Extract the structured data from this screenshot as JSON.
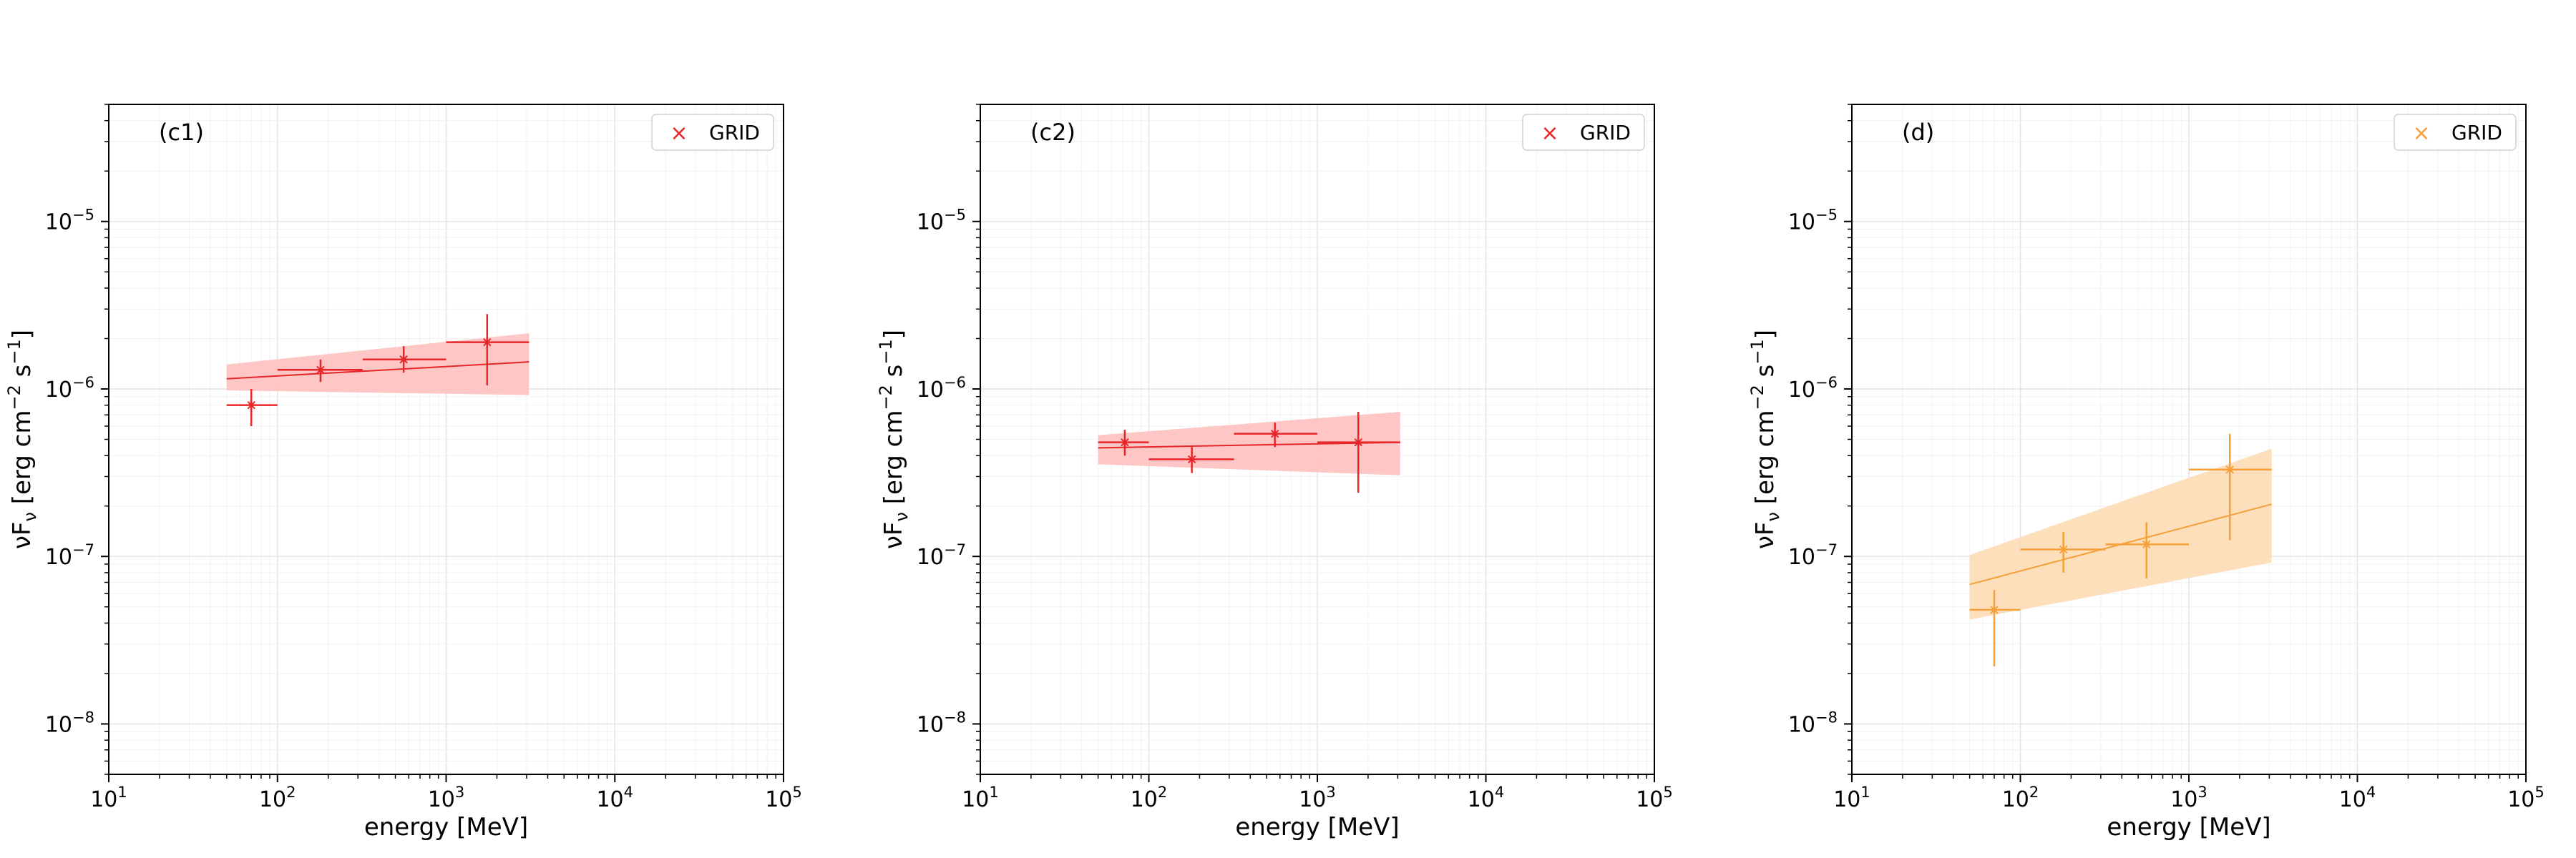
{
  "chart_data": [
    {
      "type": "scatter",
      "panel_label": "(c1)",
      "xlabel": "energy [MeV]",
      "ylabel": "νF_ν [erg cm^-2 s^-1]",
      "ylabel_main": "νF",
      "ylabel_sub": "ν",
      "ylabel_unit": " [erg cm",
      "ylabel_exp1": "−2",
      "ylabel_mid": " s",
      "ylabel_exp2": "−1",
      "ylabel_end": "]",
      "xscale": "log",
      "yscale": "log",
      "xlim": [
        10,
        100000
      ],
      "ylim": [
        5e-09,
        5e-05
      ],
      "x_ticks": [
        {
          "value": 10,
          "base": "10",
          "exp": "1"
        },
        {
          "value": 100,
          "base": "10",
          "exp": "2"
        },
        {
          "value": 1000,
          "base": "10",
          "exp": "3"
        },
        {
          "value": 10000,
          "base": "10",
          "exp": "4"
        },
        {
          "value": 100000,
          "base": "10",
          "exp": "5"
        }
      ],
      "y_ticks": [
        {
          "value": 1e-08,
          "base": "10",
          "exp": "−8"
        },
        {
          "value": 1e-07,
          "base": "10",
          "exp": "−7"
        },
        {
          "value": 1e-06,
          "base": "10",
          "exp": "−6"
        },
        {
          "value": 1e-05,
          "base": "10",
          "exp": "−5"
        }
      ],
      "grid": true,
      "color": "#e8262a",
      "band_color": "#ffc0c0",
      "legend": {
        "label": "GRID",
        "marker": "×",
        "position": "top-right"
      },
      "points": [
        {
          "x": 70,
          "y": 8e-07,
          "xlo": 50,
          "xhi": 100,
          "ylo": 6e-07,
          "yhi": 1e-06
        },
        {
          "x": 180,
          "y": 1.3e-06,
          "xlo": 100,
          "xhi": 320,
          "ylo": 1.1e-06,
          "yhi": 1.5e-06
        },
        {
          "x": 560,
          "y": 1.5e-06,
          "xlo": 320,
          "xhi": 1000,
          "ylo": 1.25e-06,
          "yhi": 1.8e-06
        },
        {
          "x": 1750,
          "y": 1.9e-06,
          "xlo": 1000,
          "xhi": 3100,
          "ylo": 1.05e-06,
          "yhi": 2.8e-06
        }
      ],
      "fit": {
        "x": [
          50,
          3100
        ],
        "y": [
          1.15e-06,
          1.45e-06
        ]
      },
      "band": {
        "x": [
          50,
          3100
        ],
        "ylo": [
          9.8e-07,
          9.2e-07
        ],
        "yhi": [
          1.4e-06,
          2.15e-06
        ]
      }
    },
    {
      "type": "scatter",
      "panel_label": "(c2)",
      "xlabel": "energy [MeV]",
      "ylabel": "νF_ν [erg cm^-2 s^-1]",
      "ylabel_main": "νF",
      "ylabel_sub": "ν",
      "ylabel_unit": " [erg cm",
      "ylabel_exp1": "−2",
      "ylabel_mid": " s",
      "ylabel_exp2": "−1",
      "ylabel_end": "]",
      "xscale": "log",
      "yscale": "log",
      "xlim": [
        10,
        100000
      ],
      "ylim": [
        5e-09,
        5e-05
      ],
      "x_ticks": [
        {
          "value": 10,
          "base": "10",
          "exp": "1"
        },
        {
          "value": 100,
          "base": "10",
          "exp": "2"
        },
        {
          "value": 1000,
          "base": "10",
          "exp": "3"
        },
        {
          "value": 10000,
          "base": "10",
          "exp": "4"
        },
        {
          "value": 100000,
          "base": "10",
          "exp": "5"
        }
      ],
      "y_ticks": [
        {
          "value": 1e-08,
          "base": "10",
          "exp": "−8"
        },
        {
          "value": 1e-07,
          "base": "10",
          "exp": "−7"
        },
        {
          "value": 1e-06,
          "base": "10",
          "exp": "−6"
        },
        {
          "value": 1e-05,
          "base": "10",
          "exp": "−5"
        }
      ],
      "grid": true,
      "color": "#e8262a",
      "band_color": "#ffc0c0",
      "legend": {
        "label": "GRID",
        "marker": "×",
        "position": "top-right"
      },
      "points": [
        {
          "x": 72,
          "y": 4.8e-07,
          "xlo": 50,
          "xhi": 100,
          "ylo": 4e-07,
          "yhi": 5.7e-07
        },
        {
          "x": 180,
          "y": 3.8e-07,
          "xlo": 100,
          "xhi": 320,
          "ylo": 3.15e-07,
          "yhi": 4.5e-07
        },
        {
          "x": 560,
          "y": 5.4e-07,
          "xlo": 320,
          "xhi": 1000,
          "ylo": 4.5e-07,
          "yhi": 6.3e-07
        },
        {
          "x": 1750,
          "y": 4.8e-07,
          "xlo": 1000,
          "xhi": 3100,
          "ylo": 2.4e-07,
          "yhi": 7.3e-07
        }
      ],
      "fit": {
        "x": [
          50,
          3100
        ],
        "y": [
          4.45e-07,
          4.8e-07
        ]
      },
      "band": {
        "x": [
          50,
          3100
        ],
        "ylo": [
          3.55e-07,
          3.05e-07
        ],
        "yhi": [
          5.3e-07,
          7.3e-07
        ]
      }
    },
    {
      "type": "scatter",
      "panel_label": "(d)",
      "xlabel": "energy [MeV]",
      "ylabel": "νF_ν [erg cm^-2 s^-1]",
      "ylabel_main": "νF",
      "ylabel_sub": "ν",
      "ylabel_unit": " [erg cm",
      "ylabel_exp1": "−2",
      "ylabel_mid": " s",
      "ylabel_exp2": "−1",
      "ylabel_end": "]",
      "xscale": "log",
      "yscale": "log",
      "xlim": [
        10,
        100000
      ],
      "ylim": [
        5e-09,
        5e-05
      ],
      "x_ticks": [
        {
          "value": 10,
          "base": "10",
          "exp": "1"
        },
        {
          "value": 100,
          "base": "10",
          "exp": "2"
        },
        {
          "value": 1000,
          "base": "10",
          "exp": "3"
        },
        {
          "value": 10000,
          "base": "10",
          "exp": "4"
        },
        {
          "value": 100000,
          "base": "10",
          "exp": "5"
        }
      ],
      "y_ticks": [
        {
          "value": 1e-08,
          "base": "10",
          "exp": "−8"
        },
        {
          "value": 1e-07,
          "base": "10",
          "exp": "−7"
        },
        {
          "value": 1e-06,
          "base": "10",
          "exp": "−6"
        },
        {
          "value": 1e-05,
          "base": "10",
          "exp": "−5"
        }
      ],
      "grid": true,
      "color": "#f5a03a",
      "band_color": "#fddcb5",
      "legend": {
        "label": "GRID",
        "marker": "×",
        "position": "top-right"
      },
      "points": [
        {
          "x": 70,
          "y": 4.8e-08,
          "xlo": 50,
          "xhi": 100,
          "ylo": 2.2e-08,
          "yhi": 6.3e-08
        },
        {
          "x": 180,
          "y": 1.1e-07,
          "xlo": 100,
          "xhi": 320,
          "ylo": 8e-08,
          "yhi": 1.4e-07
        },
        {
          "x": 560,
          "y": 1.18e-07,
          "xlo": 320,
          "xhi": 1000,
          "ylo": 7.4e-08,
          "yhi": 1.6e-07
        },
        {
          "x": 1750,
          "y": 3.3e-07,
          "xlo": 1000,
          "xhi": 3100,
          "ylo": 1.25e-07,
          "yhi": 5.4e-07
        }
      ],
      "fit": {
        "x": [
          50,
          3100
        ],
        "y": [
          6.8e-08,
          2.05e-07
        ]
      },
      "band": {
        "x": [
          50,
          3100
        ],
        "ylo": [
          4.2e-08,
          9.2e-08
        ],
        "yhi": [
          1.02e-07,
          4.4e-07
        ]
      }
    }
  ]
}
